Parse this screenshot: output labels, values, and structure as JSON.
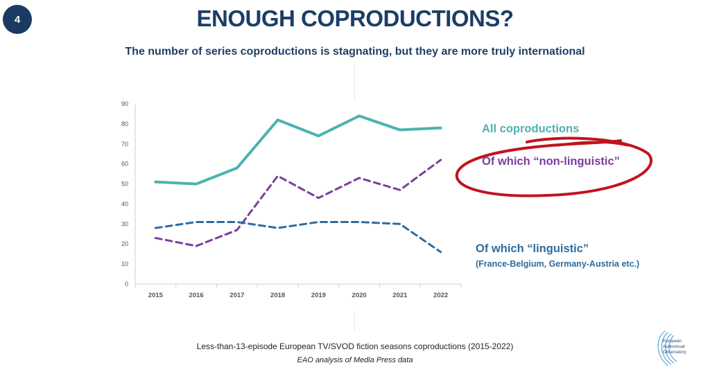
{
  "slide": {
    "number": "4"
  },
  "header": {
    "title": "ENOUGH COPRODUCTIONS?",
    "subtitle": "The number of series coproductions is stagnating, but they are more truly international"
  },
  "footer": {
    "caption": "Less-than-13-episode  European TV/SVOD fiction seasons coproductions (2015-2022)",
    "source": "EAO analysis of Media Press data"
  },
  "logo": {
    "lines": [
      "European",
      "Audiovisual",
      "Observatory"
    ]
  },
  "colors": {
    "all": "#4bb3ae",
    "non_linguistic": "#7a3e9d",
    "linguistic": "#2e6b9e",
    "highlight": "#c0141f"
  },
  "chart_data": {
    "type": "line",
    "categories": [
      "2015",
      "2016",
      "2017",
      "2018",
      "2019",
      "2020",
      "2021",
      "2022"
    ],
    "ylim": [
      0,
      90
    ],
    "yticks": [
      0,
      10,
      20,
      30,
      40,
      50,
      60,
      70,
      80,
      90
    ],
    "series": [
      {
        "name": "All coproductions",
        "values": [
          51,
          50,
          58,
          82,
          74,
          84,
          77,
          78
        ],
        "style": "solid"
      },
      {
        "name": "Of which “non-linguistic”",
        "values": [
          23,
          19,
          27,
          54,
          43,
          53,
          47,
          62
        ],
        "style": "dashed"
      },
      {
        "name": "Of which “linguistic”",
        "values": [
          28,
          31,
          31,
          28,
          31,
          31,
          30,
          16
        ],
        "style": "dashed",
        "note": "(France-Belgium, Germany-Austria etc.)"
      }
    ]
  }
}
